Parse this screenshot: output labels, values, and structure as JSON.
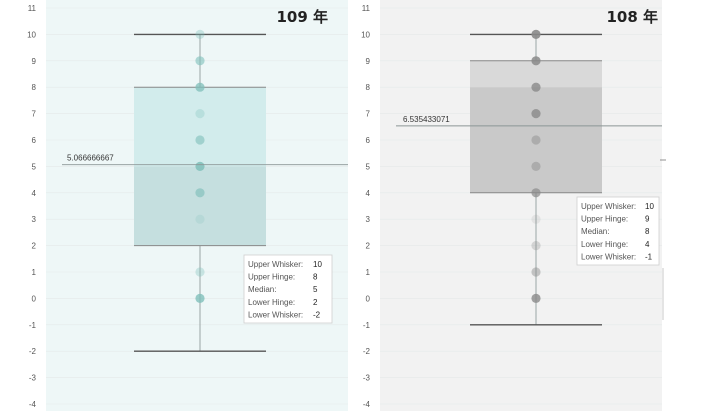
{
  "colors": {
    "left_bg": "#eef7f7",
    "left_upper_box": "#d2ecec",
    "left_lower_box": "#c5dfdf",
    "left_dot": "#7fbfba",
    "right_bg": "#f2f2f2",
    "right_upper_box": "#d9d9d9",
    "right_lower_box": "#c9c9c9",
    "right_dot": "#8a8a8a",
    "whisker": "#555555",
    "gridline": "#ffffff"
  },
  "chart_data": [
    {
      "type": "boxplot",
      "title": "109 年",
      "ylim": [
        -4,
        11
      ],
      "yticks": [
        "11",
        "10",
        "9",
        "8",
        "7",
        "6",
        "5",
        "4",
        "3",
        "2",
        "1",
        "0",
        "-1",
        "-2",
        "-3",
        "-4"
      ],
      "points": [
        10,
        9,
        8,
        7,
        6,
        5,
        4,
        3,
        1,
        0
      ],
      "point_opacity": [
        0.35,
        0.6,
        0.75,
        0.3,
        0.6,
        0.85,
        0.65,
        0.2,
        0.35,
        0.8
      ],
      "box": {
        "upper_whisker": 10,
        "upper_hinge": 8,
        "median": 5,
        "lower_hinge": 2,
        "lower_whisker": -2
      },
      "reference_line": {
        "value": 5.066666667,
        "label": "5.066666667"
      },
      "tooltip": [
        {
          "label": "Upper Whisker:",
          "value": "10"
        },
        {
          "label": "Upper Hinge:",
          "value": "8"
        },
        {
          "label": "Median:",
          "value": "5"
        },
        {
          "label": "Lower Hinge:",
          "value": "2"
        },
        {
          "label": "Lower Whisker:",
          "value": "-2"
        }
      ]
    },
    {
      "type": "boxplot",
      "title": "108 年",
      "ylim": [
        -4,
        11
      ],
      "yticks": [
        "11",
        "10",
        "9",
        "8",
        "7",
        "6",
        "5",
        "4",
        "3",
        "2",
        "1",
        "0",
        "-1",
        "-2",
        "-3",
        "-4"
      ],
      "points": [
        10,
        9,
        8,
        7,
        6,
        5,
        4,
        3,
        2,
        1,
        0
      ],
      "point_opacity": [
        0.9,
        0.85,
        0.8,
        0.8,
        0.45,
        0.45,
        0.7,
        0.15,
        0.3,
        0.45,
        0.8
      ],
      "box": {
        "upper_whisker": 10,
        "upper_hinge": 9,
        "median": 8,
        "lower_hinge": 4,
        "lower_whisker": -1
      },
      "reference_line": {
        "value": 6.535433071,
        "label": "6.535433071"
      },
      "tooltip": [
        {
          "label": "Upper Whisker:",
          "value": "10"
        },
        {
          "label": "Upper Hinge:",
          "value": "9"
        },
        {
          "label": "Median:",
          "value": "8"
        },
        {
          "label": "Lower Hinge:",
          "value": "4"
        },
        {
          "label": "Lower Whisker:",
          "value": "-1"
        }
      ]
    }
  ]
}
